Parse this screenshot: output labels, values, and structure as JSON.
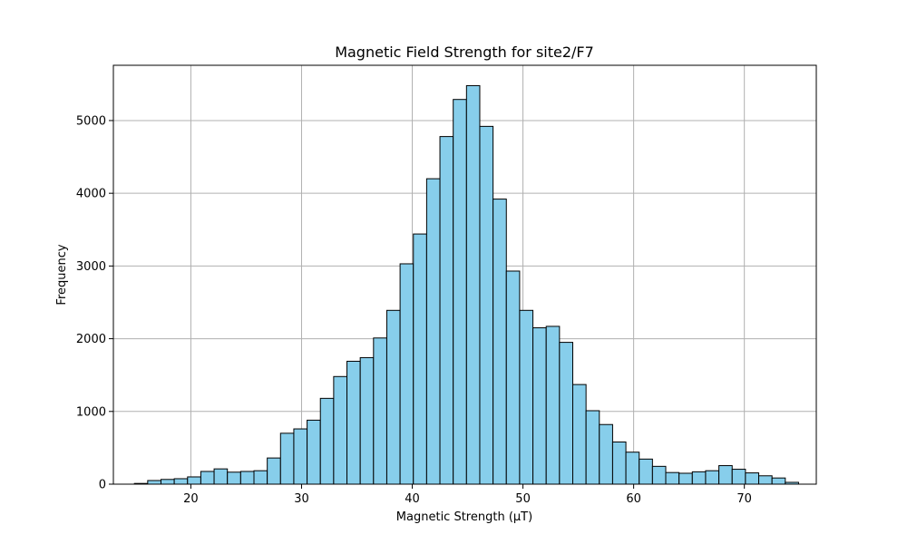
{
  "chart_data": {
    "type": "bar",
    "title": "Magnetic Field Strength for site2/F7",
    "xlabel": "Magnetic Strength (µT)",
    "ylabel": "Frequency",
    "xlim": [
      13.0,
      76.5
    ],
    "ylim": [
      0,
      5760
    ],
    "x_ticks": [
      20,
      30,
      40,
      50,
      60,
      70
    ],
    "y_ticks": [
      0,
      1000,
      2000,
      3000,
      4000,
      5000
    ],
    "grid": true,
    "bar_color": "#87CEEB",
    "edge_color": "#000000",
    "bin_start": 14.9,
    "bin_width": 1.2,
    "values": [
      10,
      50,
      65,
      75,
      100,
      175,
      210,
      165,
      175,
      185,
      360,
      700,
      760,
      880,
      1180,
      1480,
      1690,
      1740,
      2010,
      2390,
      3030,
      3440,
      4200,
      4780,
      5290,
      5480,
      4920,
      3920,
      2930,
      2390,
      2150,
      2170,
      1950,
      1370,
      1010,
      820,
      580,
      440,
      345,
      245,
      160,
      150,
      170,
      185,
      255,
      205,
      155,
      115,
      85,
      25
    ]
  }
}
